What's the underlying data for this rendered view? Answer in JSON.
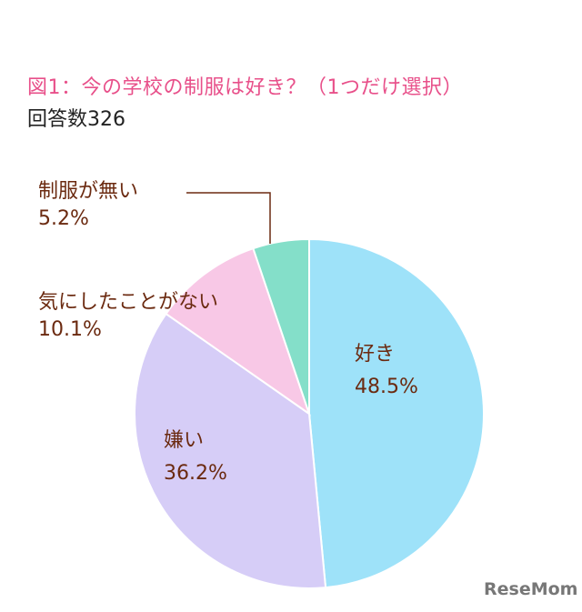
{
  "chart_data": {
    "type": "pie",
    "title": "図1：今の学校の制服は好き？（1つだけ選択）",
    "subtitle": "回答数326",
    "slices": [
      {
        "label": "好き",
        "value": 48.5,
        "value_label": "48.5%",
        "color": "#9ee2f9"
      },
      {
        "label": "嫌い",
        "value": 36.2,
        "value_label": "36.2%",
        "color": "#d6cdf7"
      },
      {
        "label": "気にしたことがない",
        "value": 10.1,
        "value_label": "10.1%",
        "color": "#f8c8e6"
      },
      {
        "label": "制服が無い",
        "value": 5.2,
        "value_label": "5.2%",
        "color": "#84dfc9"
      }
    ],
    "start": "top",
    "direction": "clockwise"
  },
  "logo": "ReseMom"
}
